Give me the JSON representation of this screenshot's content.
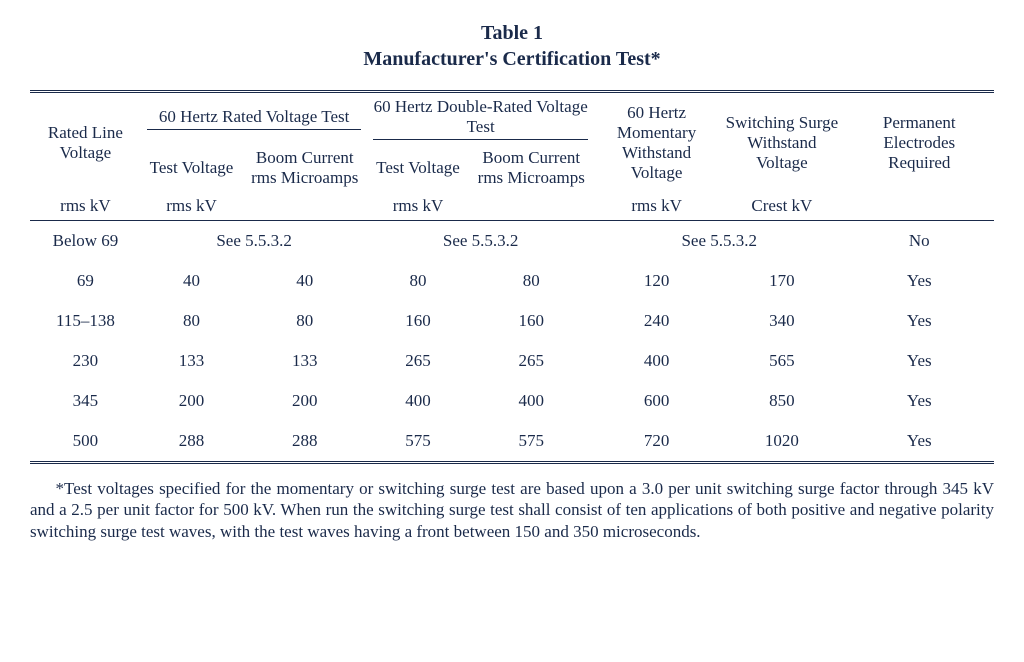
{
  "title_line1": "Table 1",
  "title_line2": "Manufacturer's Certification Test*",
  "col_widths_pct": [
    11.5,
    10.5,
    13,
    10.5,
    13,
    13,
    13,
    15.5
  ],
  "headers": {
    "rated_line_voltage": "Rated Line Voltage",
    "group_60hz_rated": "60 Hertz Rated Voltage Test",
    "group_60hz_double": "60 Hertz Double-Rated Voltage Test",
    "momentary": "60 Hertz Momentary Withstand Voltage",
    "switching": "Switching Surge Withstand Voltage",
    "electrodes": "Permanent Electrodes Required",
    "test_voltage": "Test Voltage",
    "boom_current": "Boom Current rms Microamps",
    "unit_rms_kv": "rms kV",
    "unit_crest_kv": "Crest kV"
  },
  "rows": [
    {
      "rated": "Below 69",
      "merged": true,
      "see_ref": "See 5.5.3.2",
      "electrodes": "No"
    },
    {
      "rated": "69",
      "tv1": "40",
      "bc1": "40",
      "tv2": "80",
      "bc2": "80",
      "mom": "120",
      "sw": "170",
      "electrodes": "Yes"
    },
    {
      "rated": "115–138",
      "tv1": "80",
      "bc1": "80",
      "tv2": "160",
      "bc2": "160",
      "mom": "240",
      "sw": "340",
      "electrodes": "Yes"
    },
    {
      "rated": "230",
      "tv1": "133",
      "bc1": "133",
      "tv2": "265",
      "bc2": "265",
      "mom": "400",
      "sw": "565",
      "electrodes": "Yes"
    },
    {
      "rated": "345",
      "tv1": "200",
      "bc1": "200",
      "tv2": "400",
      "bc2": "400",
      "mom": "600",
      "sw": "850",
      "electrodes": "Yes"
    },
    {
      "rated": "500",
      "tv1": "288",
      "bc1": "288",
      "tv2": "575",
      "bc2": "575",
      "mom": "720",
      "sw": "1020",
      "electrodes": "Yes"
    }
  ],
  "footnote": "*Test voltages specified for the momentary or switching surge test are based upon a 3.0 per unit switching surge factor through 345 kV and a 2.5 per unit factor for 500 kV. When run the switching surge test shall consist of ten applications of both positive and negative polarity switching surge test waves, with the test waves having a front between 150 and 350 microseconds."
}
